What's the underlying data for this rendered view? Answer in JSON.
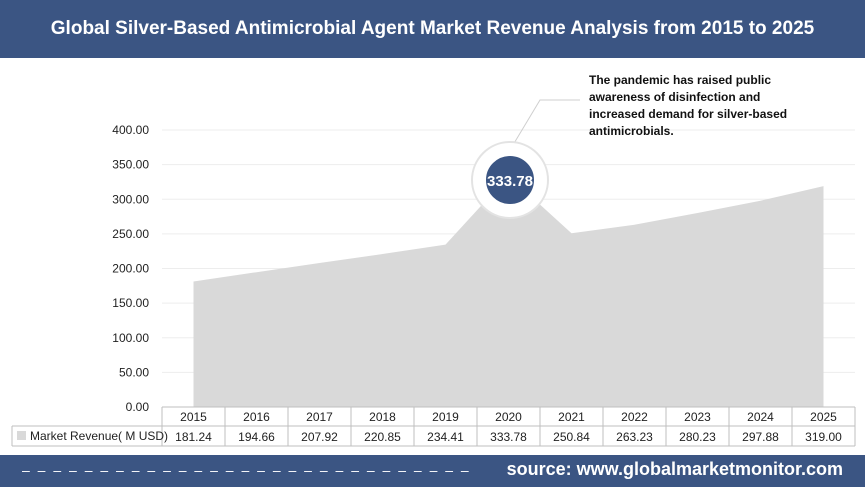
{
  "title": "Global Silver-Based Antimicrobial Agent Market Revenue Analysis from 2015 to 2025",
  "annotation": "The pandemic has raised public awareness of disinfection and increased demand for silver-based antimicrobials.",
  "highlight_label": "333.78",
  "footer": {
    "dashes": "– – – – – – – – – – – – – – – – – – – – – – – – – – – – –",
    "source": "source: www.globalmarketmonitor.com"
  },
  "colors": {
    "header": "#3b5583",
    "area": "#d9d9d9",
    "badge": "#3b5583"
  },
  "chart_data": {
    "type": "area",
    "categories": [
      "2015",
      "2016",
      "2017",
      "2018",
      "2019",
      "2020",
      "2021",
      "2022",
      "2023",
      "2024",
      "2025"
    ],
    "series": [
      {
        "name": "Market Revenue( M USD)",
        "values": [
          181.24,
          194.66,
          207.92,
          220.85,
          234.41,
          333.78,
          250.84,
          263.23,
          280.23,
          297.88,
          319.0
        ]
      }
    ],
    "value_labels": [
      "181.24",
      "194.66",
      "207.92",
      "220.85",
      "234.41",
      "333.78",
      "250.84",
      "263.23",
      "280.23",
      "297.88",
      "319.00"
    ],
    "y_ticks": [
      "0.00",
      "50.00",
      "100.00",
      "150.00",
      "200.00",
      "250.00",
      "300.00",
      "350.00",
      "400.00"
    ],
    "ylim": [
      0,
      400
    ],
    "data_table": true,
    "legend": "data-table"
  }
}
